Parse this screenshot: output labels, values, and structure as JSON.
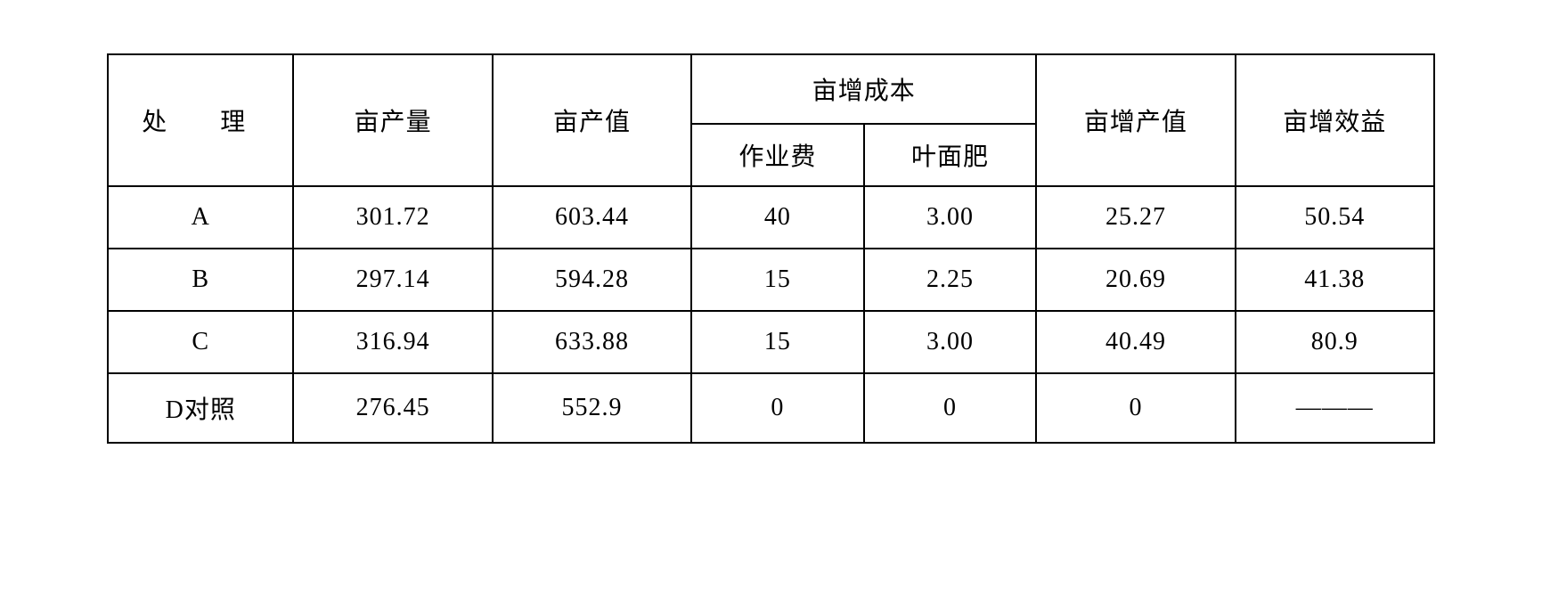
{
  "table": {
    "type": "table",
    "background_color": "#ffffff",
    "border_color": "#000000",
    "text_color": "#000000",
    "font_family": "SimSun",
    "font_size": 28,
    "border_width": 2,
    "headers": {
      "treatment": "处　理",
      "yield": "亩产量",
      "value": "亩产值",
      "cost_group": "亩增成本",
      "cost_work": "作业费",
      "cost_fert": "叶面肥",
      "inc_value": "亩增产值",
      "inc_benefit": "亩增效益"
    },
    "rows": [
      {
        "treatment": "A",
        "yield": "301.72",
        "value": "603.44",
        "cost_work": "40",
        "cost_fert": "3.00",
        "inc_value": "25.27",
        "inc_benefit": "50.54"
      },
      {
        "treatment": "B",
        "yield": "297.14",
        "value": "594.28",
        "cost_work": "15",
        "cost_fert": "2.25",
        "inc_value": "20.69",
        "inc_benefit": "41.38"
      },
      {
        "treatment": "C",
        "yield": "316.94",
        "value": "633.88",
        "cost_work": "15",
        "cost_fert": "3.00",
        "inc_value": "40.49",
        "inc_benefit": "80.9"
      },
      {
        "treatment": "D对照",
        "yield": "276.45",
        "value": "552.9",
        "cost_work": "0",
        "cost_fert": "0",
        "inc_value": "0",
        "inc_benefit": "———"
      }
    ]
  }
}
